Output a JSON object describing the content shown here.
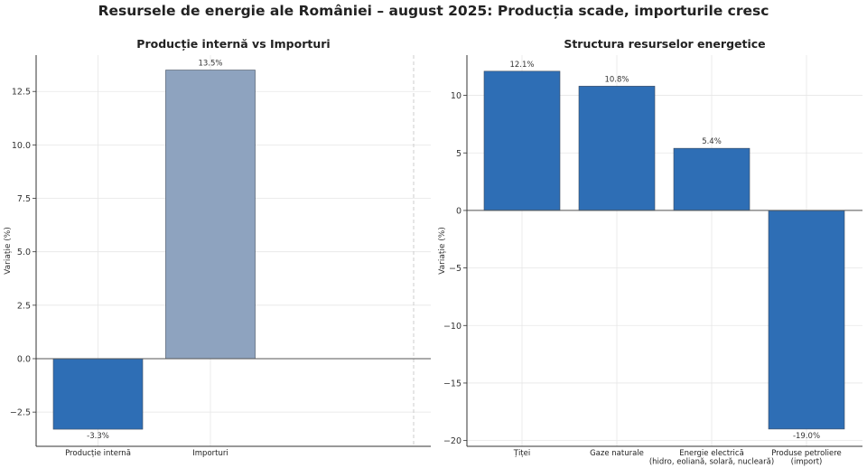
{
  "figure": {
    "title": "Resursele de energie ale României – august 2025: Producția scade, importurile cresc"
  },
  "colors": {
    "blue_bar": "#2e6eb5",
    "gray_blue_bar": "#8ea3bf",
    "bar_edge": "#3d4a5c",
    "grid": "#e6e6e6",
    "axis": "#333333",
    "text": "#222222"
  },
  "chart_data": [
    {
      "type": "bar",
      "title": "Producție internă vs Importuri",
      "ylabel": "Variație (%)",
      "xlabel": "",
      "categories": [
        "Producție internă",
        "Importuri"
      ],
      "values": [
        -3.3,
        13.5
      ],
      "value_labels": [
        "-3.3%",
        "13.5%"
      ],
      "bar_colors": [
        "#2e6eb5",
        "#8ea3bf"
      ],
      "yticks": [
        "−2.5",
        "0.0",
        "2.5",
        "5.0",
        "7.5",
        "10.0",
        "12.5"
      ],
      "ytick_values": [
        -2.5,
        0,
        2.5,
        5,
        7.5,
        10,
        12.5
      ],
      "ylim": [
        -4.1,
        14.2
      ],
      "grid": true
    },
    {
      "type": "bar",
      "title": "Structura resurselor energetice",
      "ylabel": "Variație (%)",
      "xlabel": "",
      "categories": [
        "Țiței",
        "Gaze naturale",
        "Energie electrică\n(hidro, eoliană, solară, nucleară)",
        "Produse petroliere\n(import)"
      ],
      "values": [
        12.1,
        10.8,
        5.4,
        -19.0
      ],
      "value_labels": [
        "12.1%",
        "10.8%",
        "5.4%",
        "-19.0%"
      ],
      "bar_colors": [
        "#2e6eb5",
        "#2e6eb5",
        "#2e6eb5",
        "#2e6eb5"
      ],
      "yticks": [
        "−20",
        "−15",
        "−10",
        "−5",
        "0",
        "5",
        "10"
      ],
      "ytick_values": [
        -20,
        -15,
        -10,
        -5,
        0,
        5,
        10
      ],
      "ylim": [
        -20.5,
        13.5
      ],
      "grid": true
    }
  ]
}
